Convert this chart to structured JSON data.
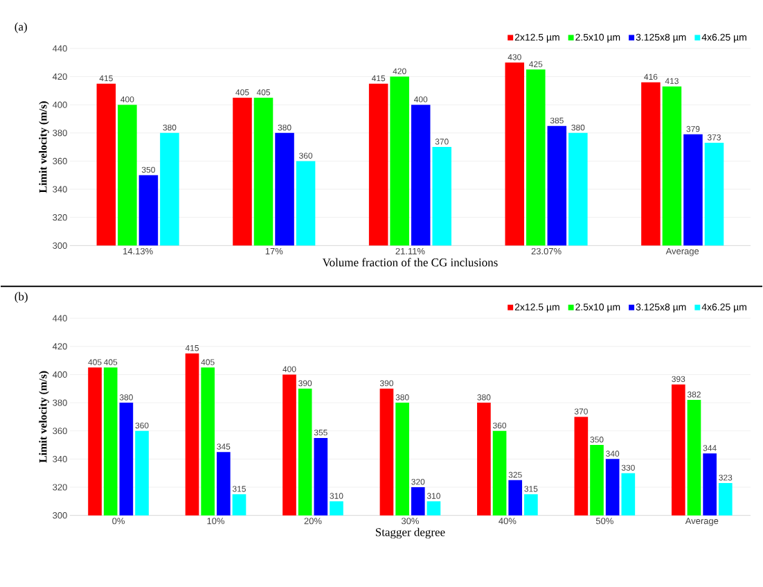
{
  "chart_data": [
    {
      "type": "bar",
      "ylabel": "Limit velocity (m/s)",
      "xlabel": "Volume fraction of the CG inclusions",
      "annotations": [
        "(a)"
      ],
      "categories": [
        "14.13%",
        "17%",
        "21.11%",
        "23.07%",
        "Average"
      ],
      "series": [
        {
          "name": "2x12.5 µm",
          "color": "#ff0000",
          "values": [
            415,
            405,
            415,
            430,
            416
          ]
        },
        {
          "name": "2.5x10 µm",
          "color": "#00ff00",
          "values": [
            400,
            405,
            420,
            425,
            413
          ]
        },
        {
          "name": "3.125x8 µm",
          "color": "#0000ff",
          "values": [
            350,
            380,
            400,
            385,
            379
          ]
        },
        {
          "name": "4x6.25 µm",
          "color": "#00ffff",
          "values": [
            380,
            360,
            370,
            380,
            373
          ]
        }
      ],
      "ylim": [
        300,
        440
      ],
      "yticks": [
        300,
        320,
        340,
        360,
        380,
        400,
        420,
        440
      ],
      "grid": "y",
      "legend": "top right",
      "data_labels": true
    },
    {
      "type": "bar",
      "ylabel": "Limit velocity (m/s)",
      "xlabel": "Stagger degree",
      "annotations": [
        "(b)"
      ],
      "categories": [
        "0%",
        "10%",
        "20%",
        "30%",
        "40%",
        "50%",
        "Average"
      ],
      "series": [
        {
          "name": "2x12.5 µm",
          "color": "#ff0000",
          "values": [
            405,
            415,
            400,
            390,
            380,
            370,
            393
          ]
        },
        {
          "name": "2.5x10 µm",
          "color": "#00ff00",
          "values": [
            405,
            405,
            390,
            380,
            360,
            350,
            382
          ]
        },
        {
          "name": "3.125x8 µm",
          "color": "#0000ff",
          "values": [
            380,
            345,
            355,
            320,
            325,
            340,
            344
          ]
        },
        {
          "name": "4x6.25 µm",
          "color": "#00ffff",
          "values": [
            360,
            315,
            310,
            310,
            315,
            330,
            323
          ]
        }
      ],
      "ylim": [
        300,
        440
      ],
      "yticks": [
        300,
        320,
        340,
        360,
        380,
        400,
        420,
        440
      ],
      "grid": "y",
      "legend": "top right",
      "data_labels": true
    }
  ]
}
